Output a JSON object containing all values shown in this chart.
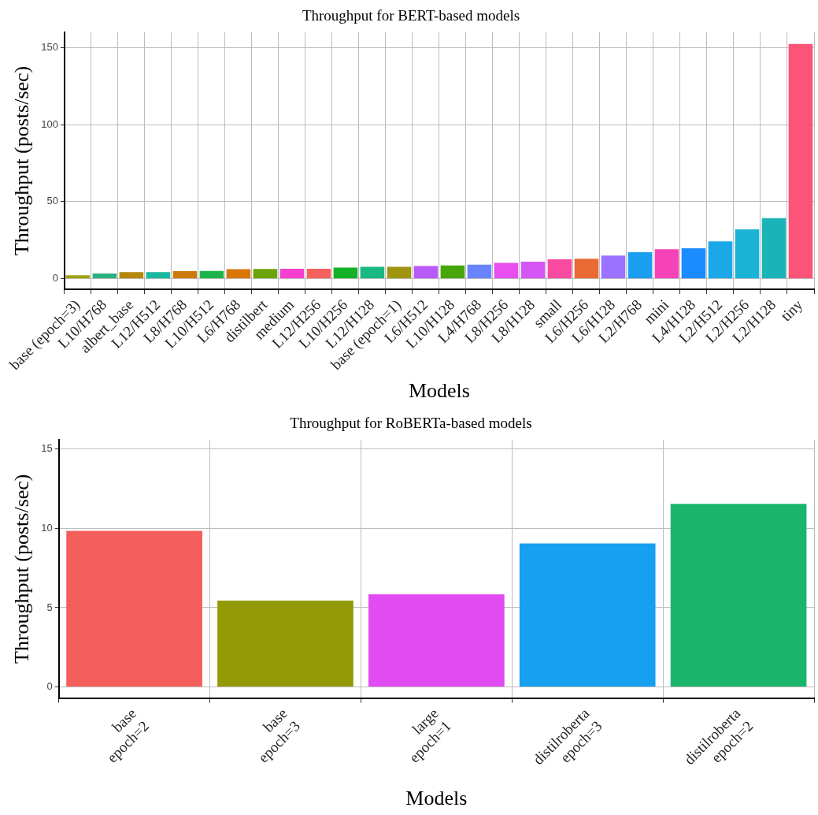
{
  "chart_data": [
    {
      "type": "bar",
      "title": "Throughput for BERT-based models",
      "xlabel": "Models",
      "ylabel": "Throughput (posts/sec)",
      "categories": [
        "base (epoch=3)",
        "L10/H768",
        "albert_base",
        "L12/H512",
        "L8/H768",
        "L10/H512",
        "L6/H768",
        "distilbert",
        "medium",
        "L12/H256",
        "L10/H256",
        "L12/H128",
        "base (epoch=1)",
        "L6/H512",
        "L10/H128",
        "L4/H768",
        "L8/H256",
        "L8/H128",
        "small",
        "L6/H256",
        "L6/H128",
        "L2/H768",
        "mini",
        "L4/H128",
        "L2/H512",
        "L2/H256",
        "L2/H128",
        "tiny"
      ],
      "values": [
        2.2,
        3.3,
        4.2,
        4.2,
        4.8,
        5.0,
        6.1,
        6.2,
        6.4,
        6.4,
        7.2,
        7.7,
        7.7,
        8.2,
        8.5,
        9.1,
        10.2,
        11.0,
        12.5,
        12.9,
        15.0,
        17.1,
        19.0,
        19.7,
        24.1,
        31.9,
        39.3,
        152.4
      ],
      "colors": [
        "#a3a010",
        "#2ab07f",
        "#b5870b",
        "#18b9a0",
        "#cc7a0a",
        "#1eb34a",
        "#d97706",
        "#6aa40a",
        "#f540d0",
        "#f5605c",
        "#14b025",
        "#1ab982",
        "#a09410",
        "#b85af8",
        "#47a60a",
        "#6a84ff",
        "#e84ef0",
        "#d456f5",
        "#f74aa0",
        "#e86a35",
        "#9b72ff",
        "#1a9ef0",
        "#f542b8",
        "#1a8cff",
        "#1aa8e8",
        "#1ab3d6",
        "#1ab3b8",
        "#fc5479"
      ],
      "ylim": [
        -7,
        160
      ],
      "yticks": [
        0,
        50,
        100,
        150
      ],
      "grid": true,
      "legend": false
    },
    {
      "type": "bar",
      "title": "Throughput for RoBERTa-based models",
      "xlabel": "Models",
      "ylabel": "Throughput (posts/sec)",
      "categories": [
        "base\nepoch=2",
        "base\nepoch=3",
        "large\nepoch=1",
        "distilroberta\nepoch=3",
        "distilroberta\nepoch=2"
      ],
      "values": [
        9.85,
        5.45,
        5.85,
        9.05,
        11.55
      ],
      "colors": [
        "#f35e5a",
        "#939a04",
        "#e04cf2",
        "#179ff0",
        "#1ab66c"
      ],
      "ylim": [
        -0.7,
        15.6
      ],
      "yticks": [
        0,
        5,
        10,
        15
      ],
      "grid": true,
      "legend": false
    }
  ]
}
